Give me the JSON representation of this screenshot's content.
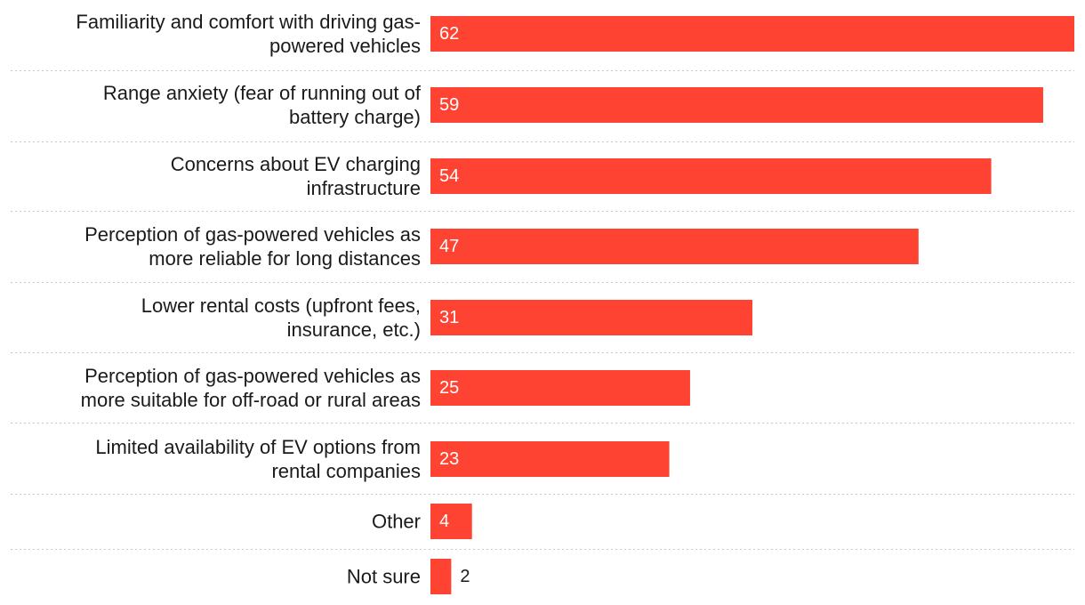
{
  "chart_data": {
    "type": "bar",
    "orientation": "horizontal",
    "title": "",
    "xlabel": "",
    "ylabel": "",
    "xlim": [
      0,
      62
    ],
    "grid": false,
    "legend": "none",
    "bar_color": "#ff4332",
    "categories": [
      [
        "Familiarity and comfort with driving gas-",
        "powered vehicles"
      ],
      [
        "Range anxiety (fear of running out of",
        "battery charge)"
      ],
      [
        "Concerns about EV charging",
        "infrastructure"
      ],
      [
        "Perception of gas-powered vehicles as",
        "more reliable for long distances"
      ],
      [
        "Lower rental costs (upfront fees,",
        "insurance, etc.)"
      ],
      [
        "Perception of gas-powered vehicles as",
        "more suitable for off-road or rural areas"
      ],
      [
        "Limited availability of EV options from",
        "rental companies"
      ],
      [
        "Other"
      ],
      [
        "Not sure"
      ]
    ],
    "values": [
      62,
      59,
      54,
      47,
      31,
      25,
      23,
      4,
      2
    ]
  }
}
